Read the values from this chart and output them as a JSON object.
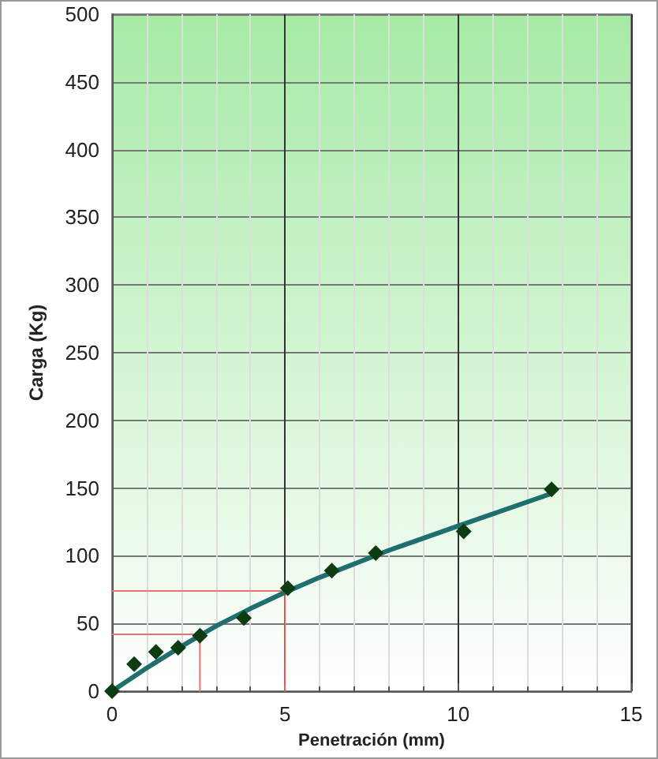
{
  "chart_data": {
    "type": "scatter",
    "xlabel": "Penetración (mm)",
    "ylabel": "Carga (Kg)",
    "xlim": [
      0,
      15
    ],
    "ylim": [
      0,
      500
    ],
    "xticks": [
      0,
      5,
      10,
      15
    ],
    "yticks": [
      0,
      50,
      100,
      150,
      200,
      250,
      300,
      350,
      400,
      450,
      500
    ],
    "grid": true,
    "marker": "diamond",
    "series": [
      {
        "type": "line",
        "marker": "none",
        "color": "#e87070",
        "x": [
          0,
          5,
          5
        ],
        "values": [
          74,
          74,
          0
        ]
      },
      {
        "type": "line",
        "marker": "none",
        "color": "#e87070",
        "x": [
          0,
          2.54,
          2.54
        ],
        "values": [
          42,
          42,
          0
        ]
      },
      {
        "type": "line",
        "marker": "none",
        "color": "#1f6f6f",
        "x": [
          0,
          1,
          2,
          3,
          4,
          5,
          6,
          8,
          10,
          12.7
        ],
        "values": [
          0,
          17,
          33,
          48,
          61,
          73,
          84,
          104,
          122,
          146
        ]
      },
      {
        "color": "#0d3b12",
        "x": [
          0,
          0.64,
          1.27,
          1.91,
          2.54,
          3.81,
          5.08,
          6.35,
          7.62,
          10.16,
          12.7
        ],
        "values": [
          0,
          20,
          29,
          32,
          41,
          54,
          76,
          89,
          102,
          118,
          149
        ]
      }
    ]
  }
}
